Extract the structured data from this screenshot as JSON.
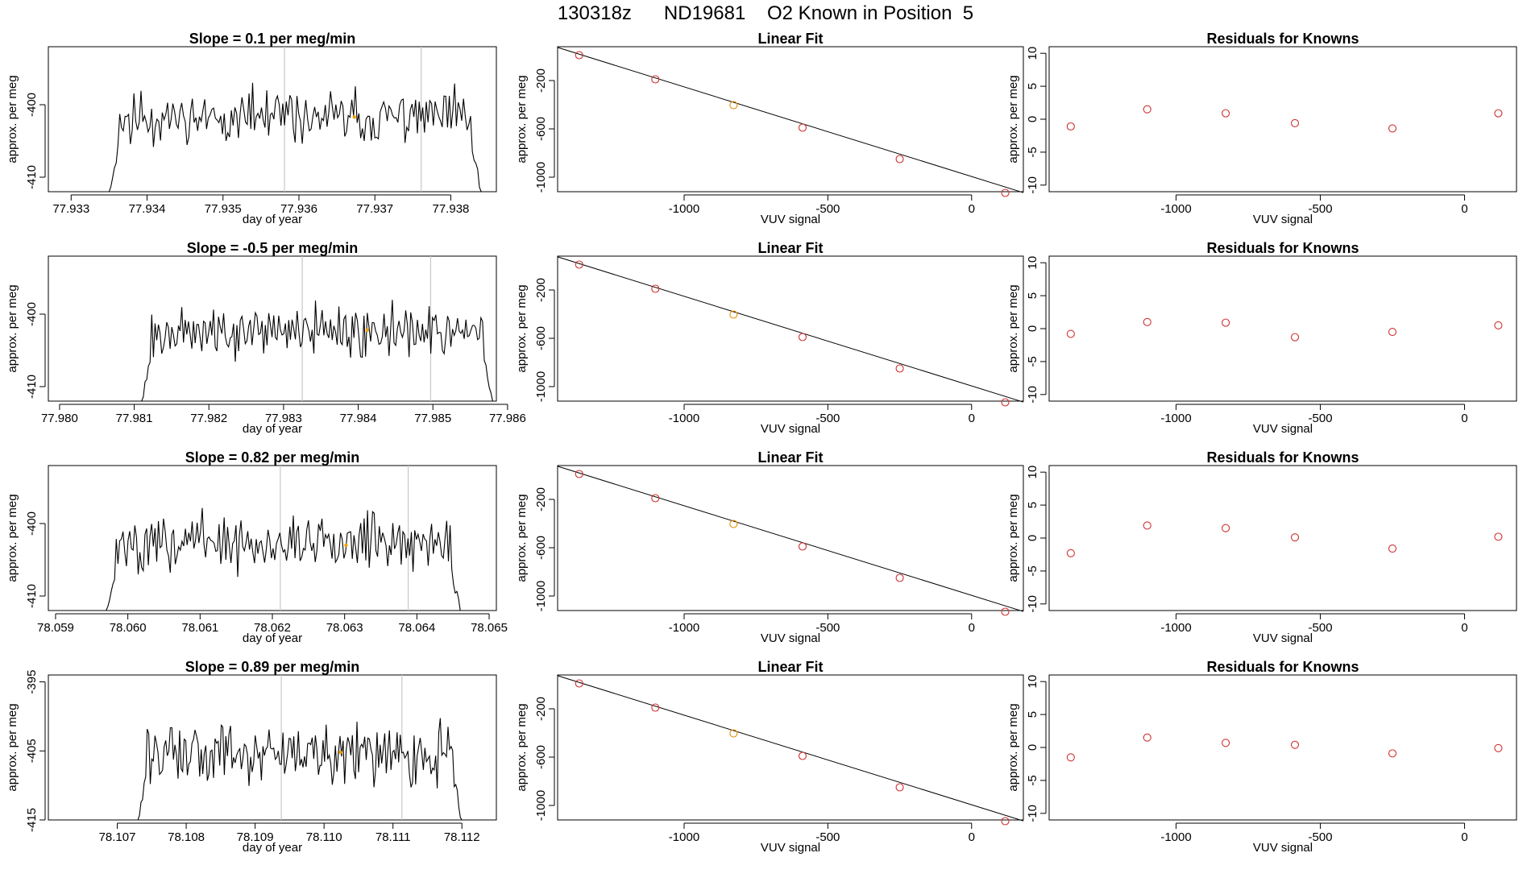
{
  "title": "130318z      ND19681    O2 Known in Position  5",
  "colors": {
    "trace": "#000000",
    "gridline": "#c8c8c8",
    "highlight": "#f5a000",
    "fit_line": "#000000",
    "point": "#d03030",
    "known_point": "#e09000"
  },
  "chart_data": [
    {
      "type": "line",
      "title": "Slope =  0.1  per meg/min",
      "xlabel": "day of year",
      "ylabel": "approx. per meg",
      "xlim": [
        77.9327,
        77.9386
      ],
      "ylim": [
        -412,
        -392
      ],
      "xticks": [
        "77.933",
        "77.934",
        "77.935",
        "77.936",
        "77.937",
        "77.938"
      ],
      "yticks": [
        "-400",
        "-410"
      ],
      "trace": {
        "start": 77.9335,
        "end": 77.9384,
        "level": -401.8,
        "noise": 2.5,
        "seed": 11
      },
      "vlines": [
        77.93581,
        77.93761
      ],
      "marker": {
        "x": 77.93673,
        "y": -401.7
      }
    },
    {
      "type": "scatter",
      "title": "Linear Fit",
      "xlabel": "VUV signal",
      "ylabel": "approx. per meg",
      "xlim": [
        -1440,
        180
      ],
      "ylim": [
        -1120,
        80
      ],
      "xticks": [
        "-1000",
        "-500",
        "0"
      ],
      "yticks": [
        "-200",
        "-600",
        "-1000"
      ],
      "points": [
        [
          -1365,
          10
        ],
        [
          -1100,
          -190
        ],
        [
          -828,
          -404
        ],
        [
          -588,
          -590
        ],
        [
          -250,
          -850
        ],
        [
          117,
          -1130
        ]
      ],
      "known_index": 2,
      "fit": [
        [
          -1440,
          74
        ],
        [
          180,
          -1128
        ]
      ]
    },
    {
      "type": "scatter",
      "title": "Residuals for Knowns",
      "xlabel": "VUV signal",
      "ylabel": "approx. per meg",
      "xlim": [
        -1440,
        180
      ],
      "ylim": [
        -11,
        11
      ],
      "xticks": [
        "-1000",
        "-500",
        "0"
      ],
      "yticks": [
        "10",
        "5",
        "0",
        "-5",
        "-10"
      ],
      "points": [
        [
          -1365,
          -1.1
        ],
        [
          -1100,
          1.5
        ],
        [
          -828,
          0.9
        ],
        [
          -588,
          -0.6
        ],
        [
          -250,
          -1.4
        ],
        [
          117,
          0.9
        ]
      ]
    },
    {
      "type": "line",
      "title": "Slope =  -0.5  per meg/min",
      "xlabel": "day of year",
      "ylabel": "approx. per meg",
      "xlim": [
        77.97985,
        77.98585
      ],
      "ylim": [
        -412,
        -392
      ],
      "xticks": [
        "77.980",
        "77.981",
        "77.982",
        "77.983",
        "77.984",
        "77.985",
        "77.986"
      ],
      "yticks": [
        "-400",
        "-410"
      ],
      "trace": {
        "start": 77.9811,
        "end": 77.9858,
        "level": -402.3,
        "noise": 2.4,
        "seed": 27
      },
      "vlines": [
        77.98325,
        77.98497
      ],
      "marker": {
        "x": 77.98412,
        "y": -402.2
      }
    },
    {
      "type": "scatter",
      "title": "Linear Fit",
      "xlabel": "VUV signal",
      "ylabel": "approx. per meg",
      "xlim": [
        -1440,
        180
      ],
      "ylim": [
        -1120,
        80
      ],
      "xticks": [
        "-1000",
        "-500",
        "0"
      ],
      "yticks": [
        "-200",
        "-600",
        "-1000"
      ],
      "points": [
        [
          -1365,
          10
        ],
        [
          -1100,
          -190
        ],
        [
          -828,
          -404
        ],
        [
          -588,
          -590
        ],
        [
          -250,
          -850
        ],
        [
          117,
          -1130
        ]
      ],
      "known_index": 2,
      "fit": [
        [
          -1440,
          74
        ],
        [
          180,
          -1128
        ]
      ]
    },
    {
      "type": "scatter",
      "title": "Residuals for Knowns",
      "xlabel": "VUV signal",
      "ylabel": "approx. per meg",
      "xlim": [
        -1440,
        180
      ],
      "ylim": [
        -11,
        11
      ],
      "xticks": [
        "-1000",
        "-500",
        "0"
      ],
      "yticks": [
        "10",
        "5",
        "0",
        "-5",
        "-10"
      ],
      "points": [
        [
          -1365,
          -0.8
        ],
        [
          -1100,
          1.0
        ],
        [
          -828,
          0.9
        ],
        [
          -588,
          -1.3
        ],
        [
          -250,
          -0.5
        ],
        [
          117,
          0.5
        ]
      ]
    },
    {
      "type": "line",
      "title": "Slope =  0.82  per meg/min",
      "xlabel": "day of year",
      "ylabel": "approx. per meg",
      "xlim": [
        78.0589,
        78.0651
      ],
      "ylim": [
        -412,
        -392
      ],
      "xticks": [
        "78.059",
        "78.060",
        "78.061",
        "78.062",
        "78.063",
        "78.064",
        "78.065"
      ],
      "yticks": [
        "-400",
        "-410"
      ],
      "trace": {
        "start": 78.0597,
        "end": 78.0646,
        "level": -402.8,
        "noise": 2.6,
        "seed": 43
      },
      "vlines": [
        78.06211,
        78.06388
      ],
      "marker": {
        "x": 78.06302,
        "y": -403.0
      }
    },
    {
      "type": "scatter",
      "title": "Linear Fit",
      "xlabel": "VUV signal",
      "ylabel": "approx. per meg",
      "xlim": [
        -1440,
        180
      ],
      "ylim": [
        -1120,
        80
      ],
      "xticks": [
        "-1000",
        "-500",
        "0"
      ],
      "yticks": [
        "-200",
        "-600",
        "-1000"
      ],
      "points": [
        [
          -1365,
          10
        ],
        [
          -1100,
          -190
        ],
        [
          -828,
          -404
        ],
        [
          -588,
          -590
        ],
        [
          -250,
          -850
        ],
        [
          117,
          -1130
        ]
      ],
      "known_index": 2,
      "fit": [
        [
          -1440,
          74
        ],
        [
          180,
          -1128
        ]
      ]
    },
    {
      "type": "scatter",
      "title": "Residuals for Knowns",
      "xlabel": "VUV signal",
      "ylabel": "approx. per meg",
      "xlim": [
        -1440,
        180
      ],
      "ylim": [
        -11,
        11
      ],
      "xticks": [
        "-1000",
        "-500",
        "0"
      ],
      "yticks": [
        "10",
        "5",
        "0",
        "-5",
        "-10"
      ],
      "points": [
        [
          -1365,
          -2.3
        ],
        [
          -1100,
          1.9
        ],
        [
          -828,
          1.5
        ],
        [
          -588,
          0.1
        ],
        [
          -250,
          -1.6
        ],
        [
          117,
          0.2
        ]
      ]
    },
    {
      "type": "line",
      "title": "Slope =  0.89  per meg/min",
      "xlabel": "day of year",
      "ylabel": "approx. per meg",
      "xlim": [
        78.106,
        78.1125
      ],
      "ylim": [
        -415,
        -394
      ],
      "xticks": [
        "78.107",
        "78.108",
        "78.109",
        "78.110",
        "78.111",
        "78.112"
      ],
      "yticks": [
        "-395",
        "-405",
        "-415"
      ],
      "trace": {
        "start": 78.1073,
        "end": 78.112,
        "level": -405.0,
        "noise": 3.2,
        "seed": 59
      },
      "vlines": [
        78.10938,
        78.11113
      ],
      "marker": {
        "x": 78.11024,
        "y": -405.2
      }
    },
    {
      "type": "scatter",
      "title": "Linear Fit",
      "xlabel": "VUV signal",
      "ylabel": "approx. per meg",
      "xlim": [
        -1440,
        180
      ],
      "ylim": [
        -1120,
        80
      ],
      "xticks": [
        "-1000",
        "-500",
        "0"
      ],
      "yticks": [
        "-200",
        "-600",
        "-1000"
      ],
      "points": [
        [
          -1365,
          10
        ],
        [
          -1100,
          -190
        ],
        [
          -828,
          -404
        ],
        [
          -588,
          -590
        ],
        [
          -250,
          -850
        ],
        [
          117,
          -1130
        ]
      ],
      "known_index": 2,
      "fit": [
        [
          -1440,
          74
        ],
        [
          180,
          -1128
        ]
      ]
    },
    {
      "type": "scatter",
      "title": "Residuals for Knowns",
      "xlabel": "VUV signal",
      "ylabel": "approx. per meg",
      "xlim": [
        -1440,
        180
      ],
      "ylim": [
        -11,
        11
      ],
      "xticks": [
        "-1000",
        "-500",
        "0"
      ],
      "yticks": [
        "10",
        "5",
        "0",
        "-5",
        "-10"
      ],
      "points": [
        [
          -1365,
          -1.5
        ],
        [
          -1100,
          1.5
        ],
        [
          -828,
          0.7
        ],
        [
          -588,
          0.4
        ],
        [
          -250,
          -0.9
        ],
        [
          117,
          -0.1
        ]
      ]
    }
  ]
}
